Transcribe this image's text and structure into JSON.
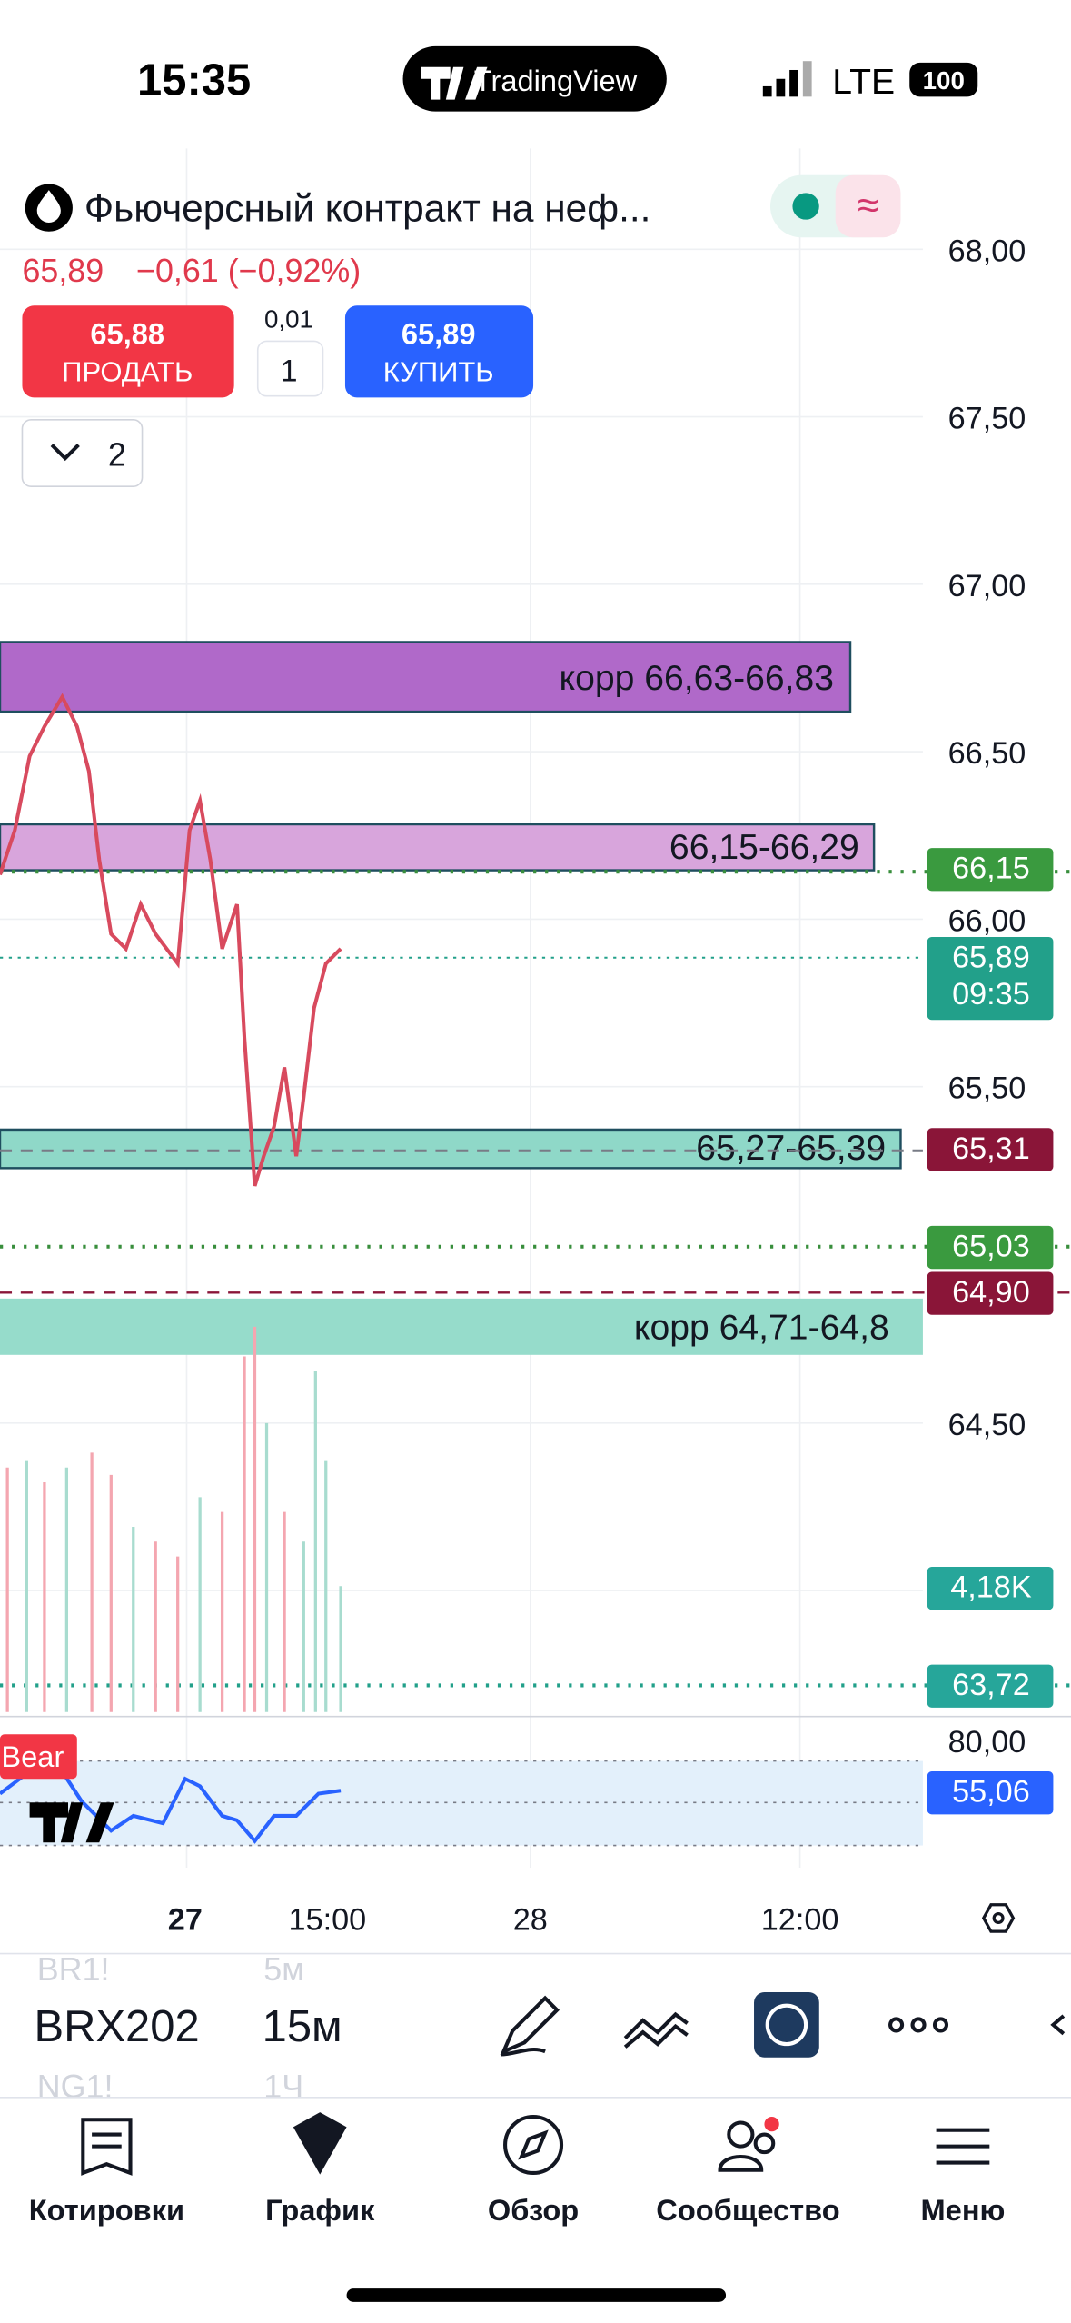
{
  "status": {
    "time": "15:35",
    "app": "TradingView",
    "network": "LTE",
    "battery": "100"
  },
  "header": {
    "title": "Фьючерсный контракт на неф...",
    "quote": "65,89",
    "change": "−0,61 (−0,92%)"
  },
  "trade": {
    "sell_price": "65,88",
    "sell_label": "ПРОДАТЬ",
    "step": "0,01",
    "qty": "1",
    "buy_price": "65,89",
    "buy_label": "КУПИТЬ",
    "collapse": "2"
  },
  "price_axis": [
    "68,00",
    "67,50",
    "67,00",
    "66,50",
    "66,00",
    "65,50",
    "64,50"
  ],
  "zones": [
    "корр 66,63-66,83",
    "66,15-66,29",
    "65,27-65,39",
    "корр 64,71-64,8"
  ],
  "price_tags": [
    "66,15",
    "65,89",
    "09:35",
    "65,31",
    "65,03",
    "64,90",
    "4,18K",
    "63,72"
  ],
  "indicator": {
    "label": "Bear",
    "axis": "80,00",
    "value": "55,06"
  },
  "time_axis": [
    "27",
    "15:00",
    "28",
    "12:00"
  ],
  "toolbar": {
    "symbol": "BRX202",
    "symbol_prev": "BR1!",
    "symbol_next": "NG1!",
    "interval": "15м",
    "interval_prev": "5м",
    "interval_next": "1Ч"
  },
  "tabs": [
    "Котировки",
    "График",
    "Обзор",
    "Сообщество",
    "Меню"
  ]
}
